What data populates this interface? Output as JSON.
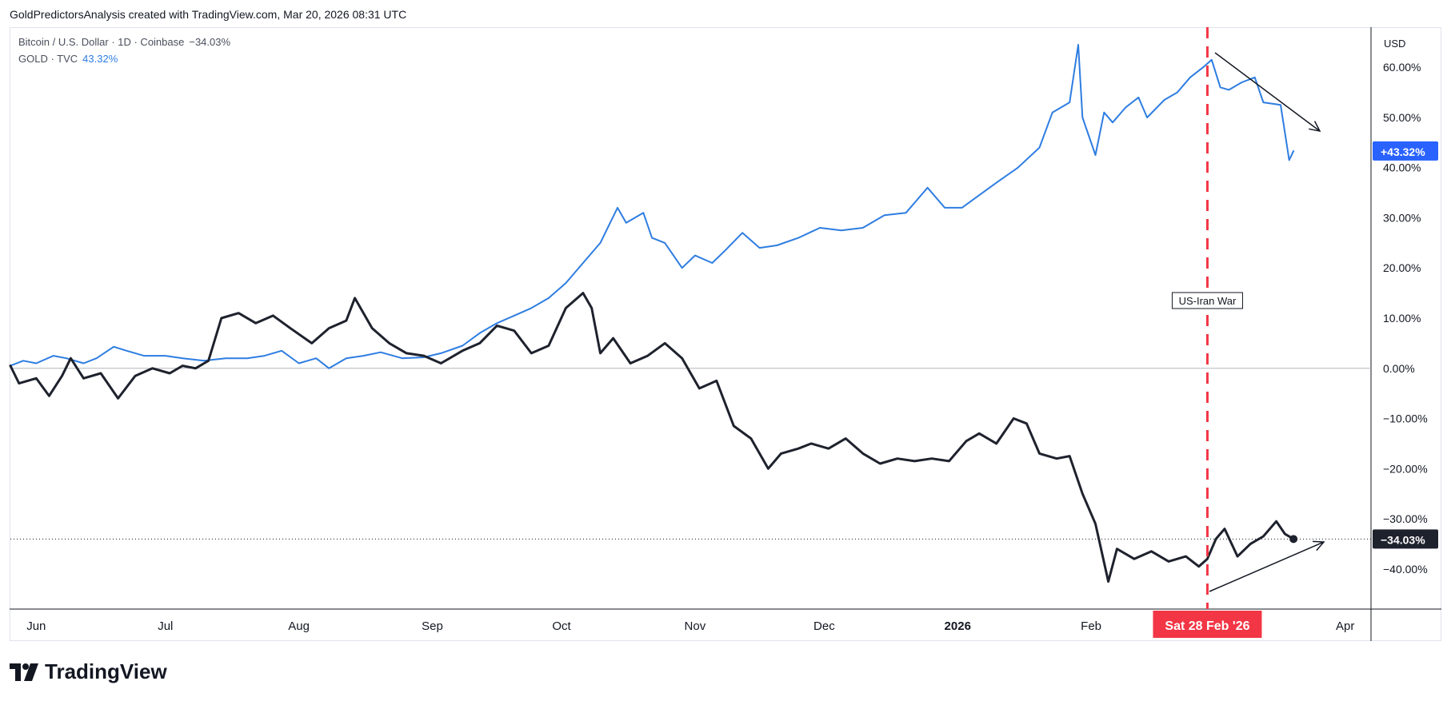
{
  "credit": "GoldPredictorsAnalysis created with TradingView.com, Mar 20, 2026 08:31 UTC",
  "legend": {
    "btc_label": "Bitcoin / U.S. Dollar · 1D · Coinbase",
    "btc_change": "−34.03%",
    "gold_label": "GOLD · TVC",
    "gold_change": "43.32%"
  },
  "currency": "USD",
  "annotation": "US-Iran War",
  "crosshair_date": "Sat 28 Feb '26",
  "logo_text": "TradingView",
  "colors": {
    "gold": "#2e7de1",
    "btc": "#1e222d",
    "event": "#f23645",
    "gold_badge": "#2962ff",
    "axis_text": "#131722",
    "zero_line": "#b2b5be"
  },
  "chart_data": {
    "type": "line",
    "y_unit": "%",
    "ylim": [
      -48,
      68
    ],
    "y_ticks": [
      "60.00%",
      "50.00%",
      "40.00%",
      "30.00%",
      "20.00%",
      "10.00%",
      "0.00%",
      "−10.00%",
      "−20.00%",
      "−30.00%",
      "−40.00%"
    ],
    "y_tick_values": [
      60,
      50,
      40,
      30,
      20,
      10,
      0,
      -10,
      -20,
      -30,
      -40
    ],
    "x_start": "2025-05-26",
    "x_end": "2026-04-07",
    "x_ticks": [
      {
        "label": "Jun",
        "date": "2025-06-01",
        "bold": false
      },
      {
        "label": "Jul",
        "date": "2025-07-01",
        "bold": false
      },
      {
        "label": "Aug",
        "date": "2025-08-01",
        "bold": false
      },
      {
        "label": "Sep",
        "date": "2025-09-01",
        "bold": false
      },
      {
        "label": "Oct",
        "date": "2025-10-01",
        "bold": false
      },
      {
        "label": "Nov",
        "date": "2025-11-01",
        "bold": false
      },
      {
        "label": "Dec",
        "date": "2025-12-01",
        "bold": false
      },
      {
        "label": "2026",
        "date": "2026-01-01",
        "bold": true
      },
      {
        "label": "Feb",
        "date": "2026-02-01",
        "bold": false
      },
      {
        "label": "Apr",
        "date": "2026-04-01",
        "bold": false
      }
    ],
    "event_date": "2026-02-28",
    "last_values": {
      "gold": 43.32,
      "btc": -34.03
    },
    "last_labels": {
      "gold": "+43.32%",
      "btc": "−34.03%"
    },
    "series": [
      {
        "key": "gold",
        "values": [
          [
            "2025-05-26",
            0.5
          ],
          [
            "2025-05-29",
            1.5
          ],
          [
            "2025-06-01",
            1.0
          ],
          [
            "2025-06-05",
            2.5
          ],
          [
            "2025-06-08",
            2.0
          ],
          [
            "2025-06-12",
            1.0
          ],
          [
            "2025-06-15",
            2.0
          ],
          [
            "2025-06-19",
            4.3
          ],
          [
            "2025-06-22",
            3.5
          ],
          [
            "2025-06-26",
            2.5
          ],
          [
            "2025-07-01",
            2.5
          ],
          [
            "2025-07-05",
            2.0
          ],
          [
            "2025-07-10",
            1.5
          ],
          [
            "2025-07-15",
            2.0
          ],
          [
            "2025-07-20",
            2.0
          ],
          [
            "2025-07-24",
            2.5
          ],
          [
            "2025-07-28",
            3.5
          ],
          [
            "2025-08-01",
            1.0
          ],
          [
            "2025-08-05",
            2.0
          ],
          [
            "2025-08-08",
            0.0
          ],
          [
            "2025-08-12",
            2.0
          ],
          [
            "2025-08-16",
            2.5
          ],
          [
            "2025-08-20",
            3.2
          ],
          [
            "2025-08-25",
            2.0
          ],
          [
            "2025-08-30",
            2.2
          ],
          [
            "2025-09-03",
            3.0
          ],
          [
            "2025-09-08",
            4.5
          ],
          [
            "2025-09-12",
            7.0
          ],
          [
            "2025-09-16",
            9.0
          ],
          [
            "2025-09-20",
            10.5
          ],
          [
            "2025-09-24",
            12.0
          ],
          [
            "2025-09-28",
            14.0
          ],
          [
            "2025-10-02",
            17.0
          ],
          [
            "2025-10-06",
            21.0
          ],
          [
            "2025-10-10",
            25.0
          ],
          [
            "2025-10-14",
            32.0
          ],
          [
            "2025-10-16",
            29.0
          ],
          [
            "2025-10-20",
            31.0
          ],
          [
            "2025-10-22",
            26.0
          ],
          [
            "2025-10-25",
            25.0
          ],
          [
            "2025-10-29",
            20.0
          ],
          [
            "2025-11-01",
            22.5
          ],
          [
            "2025-11-05",
            21.0
          ],
          [
            "2025-11-08",
            23.5
          ],
          [
            "2025-11-12",
            27.0
          ],
          [
            "2025-11-16",
            24.0
          ],
          [
            "2025-11-20",
            24.5
          ],
          [
            "2025-11-25",
            26.0
          ],
          [
            "2025-11-30",
            28.0
          ],
          [
            "2025-12-05",
            27.5
          ],
          [
            "2025-12-10",
            28.0
          ],
          [
            "2025-12-15",
            30.5
          ],
          [
            "2025-12-20",
            31.0
          ],
          [
            "2025-12-25",
            36.0
          ],
          [
            "2025-12-29",
            32.0
          ],
          [
            "2026-01-02",
            32.0
          ],
          [
            "2026-01-06",
            34.5
          ],
          [
            "2026-01-10",
            37.0
          ],
          [
            "2026-01-15",
            40.0
          ],
          [
            "2026-01-20",
            44.0
          ],
          [
            "2026-01-23",
            51.0
          ],
          [
            "2026-01-27",
            53.0
          ],
          [
            "2026-01-29",
            64.5
          ],
          [
            "2026-01-30",
            50.0
          ],
          [
            "2026-02-02",
            42.5
          ],
          [
            "2026-02-04",
            51.0
          ],
          [
            "2026-02-06",
            49.0
          ],
          [
            "2026-02-09",
            52.0
          ],
          [
            "2026-02-12",
            54.0
          ],
          [
            "2026-02-14",
            50.0
          ],
          [
            "2026-02-18",
            53.5
          ],
          [
            "2026-02-21",
            55.0
          ],
          [
            "2026-02-24",
            58.0
          ],
          [
            "2026-02-27",
            60.0
          ],
          [
            "2026-03-01",
            61.5
          ],
          [
            "2026-03-03",
            56.0
          ],
          [
            "2026-03-05",
            55.5
          ],
          [
            "2026-03-08",
            57.0
          ],
          [
            "2026-03-11",
            58.0
          ],
          [
            "2026-03-13",
            53.0
          ],
          [
            "2026-03-17",
            52.5
          ],
          [
            "2026-03-19",
            41.5
          ],
          [
            "2026-03-20",
            43.32
          ]
        ]
      },
      {
        "key": "btc",
        "values": [
          [
            "2025-05-26",
            0.5
          ],
          [
            "2025-05-28",
            -3.0
          ],
          [
            "2025-06-01",
            -2.0
          ],
          [
            "2025-06-04",
            -5.5
          ],
          [
            "2025-06-07",
            -1.5
          ],
          [
            "2025-06-09",
            2.0
          ],
          [
            "2025-06-12",
            -2.0
          ],
          [
            "2025-06-16",
            -1.0
          ],
          [
            "2025-06-20",
            -6.0
          ],
          [
            "2025-06-24",
            -1.5
          ],
          [
            "2025-06-28",
            0.0
          ],
          [
            "2025-07-02",
            -1.0
          ],
          [
            "2025-07-05",
            0.5
          ],
          [
            "2025-07-08",
            0.0
          ],
          [
            "2025-07-11",
            1.5
          ],
          [
            "2025-07-14",
            10.0
          ],
          [
            "2025-07-18",
            11.0
          ],
          [
            "2025-07-22",
            9.0
          ],
          [
            "2025-07-26",
            10.5
          ],
          [
            "2025-07-30",
            8.0
          ],
          [
            "2025-08-04",
            5.0
          ],
          [
            "2025-08-08",
            8.0
          ],
          [
            "2025-08-12",
            9.5
          ],
          [
            "2025-08-14",
            14.0
          ],
          [
            "2025-08-18",
            8.0
          ],
          [
            "2025-08-22",
            5.0
          ],
          [
            "2025-08-26",
            3.0
          ],
          [
            "2025-08-30",
            2.5
          ],
          [
            "2025-09-03",
            1.0
          ],
          [
            "2025-09-08",
            3.5
          ],
          [
            "2025-09-12",
            5.0
          ],
          [
            "2025-09-16",
            8.5
          ],
          [
            "2025-09-20",
            7.5
          ],
          [
            "2025-09-24",
            3.0
          ],
          [
            "2025-09-28",
            4.5
          ],
          [
            "2025-10-02",
            12.0
          ],
          [
            "2025-10-06",
            15.0
          ],
          [
            "2025-10-08",
            12.0
          ],
          [
            "2025-10-10",
            3.0
          ],
          [
            "2025-10-13",
            6.0
          ],
          [
            "2025-10-17",
            1.0
          ],
          [
            "2025-10-21",
            2.5
          ],
          [
            "2025-10-25",
            5.0
          ],
          [
            "2025-10-29",
            2.0
          ],
          [
            "2025-11-02",
            -4.0
          ],
          [
            "2025-11-06",
            -2.5
          ],
          [
            "2025-11-10",
            -11.5
          ],
          [
            "2025-11-14",
            -14.0
          ],
          [
            "2025-11-18",
            -20.0
          ],
          [
            "2025-11-21",
            -17.0
          ],
          [
            "2025-11-25",
            -16.0
          ],
          [
            "2025-11-28",
            -15.0
          ],
          [
            "2025-12-02",
            -16.0
          ],
          [
            "2025-12-06",
            -14.0
          ],
          [
            "2025-12-10",
            -17.0
          ],
          [
            "2025-12-14",
            -19.0
          ],
          [
            "2025-12-18",
            -18.0
          ],
          [
            "2025-12-22",
            -18.5
          ],
          [
            "2025-12-26",
            -18.0
          ],
          [
            "2025-12-30",
            -18.5
          ],
          [
            "2026-01-03",
            -14.5
          ],
          [
            "2026-01-06",
            -13.0
          ],
          [
            "2026-01-10",
            -15.0
          ],
          [
            "2026-01-14",
            -10.0
          ],
          [
            "2026-01-17",
            -11.0
          ],
          [
            "2026-01-20",
            -17.0
          ],
          [
            "2026-01-24",
            -18.0
          ],
          [
            "2026-01-27",
            -17.5
          ],
          [
            "2026-01-30",
            -25.0
          ],
          [
            "2026-02-02",
            -31.0
          ],
          [
            "2026-02-05",
            -42.5
          ],
          [
            "2026-02-07",
            -36.0
          ],
          [
            "2026-02-11",
            -38.0
          ],
          [
            "2026-02-15",
            -36.5
          ],
          [
            "2026-02-19",
            -38.5
          ],
          [
            "2026-02-23",
            -37.5
          ],
          [
            "2026-02-26",
            -39.5
          ],
          [
            "2026-02-28",
            -38.0
          ],
          [
            "2026-03-02",
            -34.0
          ],
          [
            "2026-03-04",
            -32.0
          ],
          [
            "2026-03-07",
            -37.5
          ],
          [
            "2026-03-10",
            -35.0
          ],
          [
            "2026-03-13",
            -33.5
          ],
          [
            "2026-03-16",
            -30.5
          ],
          [
            "2026-03-18",
            -33.0
          ],
          [
            "2026-03-20",
            -34.03
          ]
        ]
      }
    ]
  }
}
